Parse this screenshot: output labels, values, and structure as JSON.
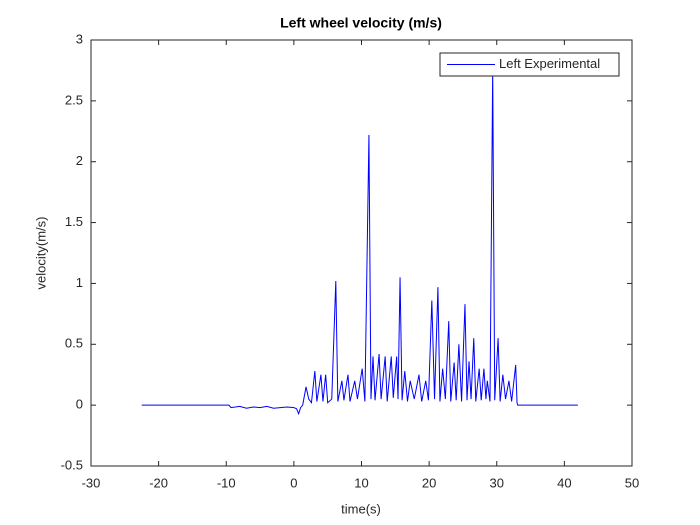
{
  "chart_data": {
    "type": "line",
    "title": "Left wheel velocity (m/s)",
    "x_label": "time(s)",
    "y_label": "velocity(m/s)",
    "xlim": [
      -30,
      50
    ],
    "xticks": [
      -30,
      -20,
      -10,
      0,
      10,
      20,
      30,
      40,
      50
    ],
    "ylim": [
      -0.5,
      3
    ],
    "yticks": [
      -0.5,
      0,
      0.5,
      1,
      1.5,
      2,
      2.5,
      3
    ],
    "grid": false,
    "legend_position": "upper-right",
    "x": [
      -22.5,
      -9.6,
      -9.3,
      -8,
      -7,
      -6,
      -5,
      -4,
      -3,
      -2,
      -1,
      0,
      0.4,
      0.7,
      1.0,
      1.3,
      1.8,
      2.2,
      2.6,
      3.1,
      3.4,
      4.0,
      4.3,
      4.7,
      5.0,
      5.6,
      6.2,
      6.5,
      7.1,
      7.4,
      8.0,
      8.3,
      9.0,
      9.4,
      10.1,
      10.5,
      11.1,
      11.4,
      11.7,
      12.0,
      12.6,
      12.9,
      13.5,
      13.8,
      14.4,
      14.7,
      15.2,
      15.4,
      15.7,
      16.0,
      16.4,
      16.8,
      17.2,
      17.8,
      18.5,
      18.9,
      19.5,
      19.9,
      20.4,
      20.8,
      21.3,
      21.6,
      22.0,
      22.4,
      22.9,
      23.2,
      23.7,
      24.0,
      24.4,
      24.8,
      25.3,
      25.6,
      25.9,
      26.2,
      26.6,
      26.9,
      27.4,
      27.7,
      28.1,
      28.4,
      28.6,
      29.0,
      29.4,
      29.7,
      30.2,
      30.5,
      30.9,
      31.3,
      31.8,
      32.2,
      32.8,
      33.0,
      33.1,
      42
    ],
    "series": [
      {
        "name": "Left Experimental",
        "color": "#0000ff",
        "values": [
          0,
          0,
          -0.02,
          -0.01,
          -0.025,
          -0.015,
          -0.02,
          -0.01,
          -0.025,
          -0.02,
          -0.015,
          -0.02,
          -0.03,
          -0.07,
          -0.02,
          0,
          0.15,
          0.05,
          0.02,
          0.28,
          0.03,
          0.25,
          0.03,
          0.25,
          0.02,
          0.05,
          1.02,
          0.03,
          0.2,
          0.04,
          0.25,
          0.03,
          0.2,
          0.05,
          0.3,
          0.03,
          2.22,
          0.05,
          0.4,
          0.04,
          0.42,
          0.05,
          0.4,
          0.03,
          0.4,
          0.06,
          0.4,
          0.05,
          1.05,
          0.04,
          0.28,
          0.03,
          0.2,
          0.05,
          0.25,
          0.03,
          0.2,
          0.04,
          0.86,
          0.05,
          0.97,
          0.03,
          0.3,
          0.05,
          0.69,
          0.03,
          0.35,
          0.04,
          0.5,
          0.03,
          0.83,
          0.04,
          0.36,
          0.05,
          0.55,
          0.03,
          0.3,
          0.04,
          0.3,
          0.05,
          0.2,
          0.03,
          2.75,
          0.04,
          0.55,
          0.03,
          0.25,
          0.05,
          0.2,
          0.03,
          0.33,
          0.02,
          0,
          0
        ]
      }
    ]
  }
}
